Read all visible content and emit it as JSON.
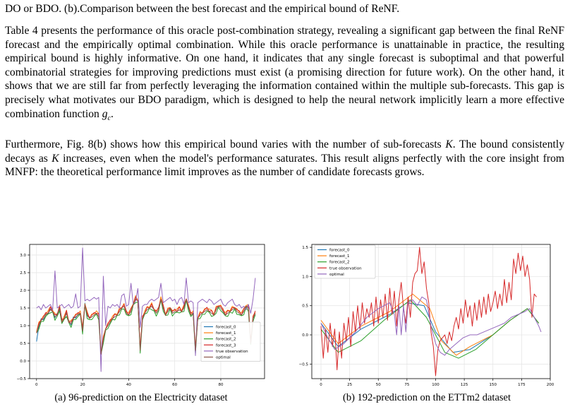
{
  "top_line": "DO or BDO. (b).Comparison between the best forecast and the empirical bound of ReNF.",
  "paragraphs": {
    "p1": "Table 4 presents the performance of this oracle post-combination strategy, revealing a significant gap between the final ReNF forecast and the empirically optimal combination. While this oracle performance is unattainable in practice, the resulting empirical bound is highly informative. On one hand, it indicates that any single forecast is suboptimal and that powerful combinatorial strategies for improving predictions must exist (a promising direction for future work). On the other hand, it shows that we are still far from perfectly leveraging the information contained within the multiple sub-forecasts. This gap is precisely what motivates our BDO paradigm, which is designed to help the neural network implicitly learn a more effective combination function",
    "p1_symbol": "g",
    "p1_subscript": "c",
    "p1_end": ".",
    "p2_a": "Furthermore, Fig. 8(b) shows how this empirical bound varies with the number of sub-forecasts",
    "p2_k1": "K",
    "p2_b": ". The bound consistently decays as",
    "p2_k2": "K",
    "p2_c": "increases, even when the model's performance saturates. This result aligns perfectly with the core insight from MNFP: the theoretical performance limit improves as the number of candidate forecasts grows."
  },
  "figures": {
    "a": {
      "caption": "(a) 96-prediction on the Electricity dataset",
      "chart_data": {
        "type": "line",
        "x_ticks": [
          "0",
          "20",
          "40",
          "60",
          "80"
        ],
        "y_ticks": [
          "−0.5",
          "0.0",
          "0.5",
          "1.0",
          "1.5",
          "2.0",
          "2.5",
          "3.0"
        ],
        "xlim": [
          -3,
          99
        ],
        "ylim": [
          -0.5,
          3.3
        ],
        "grid": true,
        "legend": "lower-right",
        "series": [
          {
            "name": "forecast_0",
            "color": "#1f77b4",
            "x_end": 23
          },
          {
            "name": "forecast_1",
            "color": "#ff7f0e"
          },
          {
            "name": "forecast_2",
            "color": "#2ca02c"
          },
          {
            "name": "forecast_3",
            "color": "#d62728"
          },
          {
            "name": "true observation",
            "color": "#9467bd"
          },
          {
            "name": "optimal",
            "color": "#8c564b"
          }
        ],
        "forecast_base": [
          0.8,
          1.0,
          1.15,
          1.2,
          1.3,
          1.35,
          1.45,
          1.4,
          1.25,
          1.3,
          1.5,
          1.1,
          1.2,
          1.35,
          1.1,
          1.05,
          1.2,
          1.25,
          1.3,
          1.35,
          0.85,
          1.6,
          1.3,
          1.2,
          1.25,
          1.3,
          1.35,
          1.25,
          0.2,
          0.6,
          0.9,
          1.0,
          1.1,
          1.2,
          1.25,
          1.3,
          1.4,
          1.5,
          1.55,
          1.35,
          1.3,
          1.4,
          1.6,
          1.75,
          1.7,
          0.3,
          1.2,
          1.35,
          1.45,
          1.5,
          1.55,
          1.45,
          1.35,
          1.45,
          1.75,
          1.5,
          1.3,
          1.4,
          1.5,
          1.35,
          1.4,
          1.4,
          1.45,
          1.4,
          1.5,
          1.75,
          1.5,
          1.3,
          1.35,
          0.3,
          1.2,
          1.3,
          1.35,
          1.4,
          1.45,
          1.4,
          1.35,
          1.3,
          1.45,
          1.55,
          1.5,
          1.4,
          1.3,
          1.35,
          1.4,
          1.45,
          1.5,
          1.4,
          1.35,
          1.3,
          1.4,
          1.55,
          1.5,
          0.5,
          1.2,
          1.35
        ],
        "true_observation": [
          1.5,
          1.55,
          1.45,
          1.6,
          1.5,
          1.55,
          1.6,
          1.45,
          2.55,
          1.5,
          1.55,
          1.6,
          1.5,
          1.55,
          1.6,
          1.5,
          1.55,
          1.9,
          1.5,
          1.55,
          3.2,
          1.7,
          1.75,
          1.7,
          1.75,
          1.8,
          1.75,
          1.8,
          -0.3,
          2.4,
          1.0,
          1.55,
          1.5,
          1.6,
          1.55,
          1.6,
          1.5,
          1.85,
          1.9,
          1.55,
          1.6,
          2.2,
          1.6,
          1.7,
          2.05,
          0.95,
          1.55,
          1.6,
          1.6,
          1.7,
          1.75,
          1.7,
          1.75,
          1.8,
          2.2,
          1.65,
          1.7,
          1.75,
          1.8,
          1.7,
          1.75,
          1.6,
          1.75,
          1.8,
          1.6,
          2.35,
          1.65,
          1.7,
          1.65,
          0.15,
          1.65,
          1.7,
          1.75,
          1.7,
          1.65,
          1.75,
          1.7,
          1.6,
          1.65,
          1.7,
          1.75,
          1.6,
          1.55,
          1.65,
          1.7,
          1.75,
          1.6,
          1.55,
          1.6,
          1.5,
          1.55,
          1.45,
          1.6,
          1.35,
          1.75,
          2.35
        ]
      }
    },
    "b": {
      "caption": "(b) 192-prediction on the ETTm2 dataset",
      "chart_data": {
        "type": "line",
        "x_ticks": [
          "0",
          "25",
          "50",
          "75",
          "100",
          "125",
          "150",
          "175",
          "200"
        ],
        "y_ticks": [
          "−0.5",
          "0.0",
          "0.5",
          "1.0",
          "1.5"
        ],
        "xlim": [
          -8,
          200
        ],
        "ylim": [
          -0.75,
          1.55
        ],
        "grid": true,
        "legend": "top-left",
        "series": [
          {
            "name": "forecast_0",
            "color": "#1f77b4"
          },
          {
            "name": "forecast_1",
            "color": "#ff7f0e"
          },
          {
            "name": "forecast_2",
            "color": "#2ca02c"
          },
          {
            "name": "true observation",
            "color": "#d62728"
          },
          {
            "name": "optimal",
            "color": "#9467bd"
          }
        ],
        "f0": [
          [
            0,
            0.2
          ],
          [
            15,
            -0.2
          ],
          [
            35,
            0.1
          ],
          [
            60,
            0.35
          ],
          [
            75,
            0.55
          ],
          [
            90,
            0.5
          ],
          [
            100,
            0.05
          ],
          [
            115,
            -0.3
          ],
          [
            130,
            -0.25
          ],
          [
            150,
            0.0
          ],
          [
            165,
            0.25
          ],
          [
            180,
            0.45
          ],
          [
            190,
            0.2
          ]
        ],
        "f1": [
          [
            0,
            0.25
          ],
          [
            15,
            -0.15
          ],
          [
            35,
            0.15
          ],
          [
            60,
            0.4
          ],
          [
            80,
            0.7
          ],
          [
            95,
            0.45
          ],
          [
            105,
            -0.1
          ],
          [
            118,
            -0.35
          ],
          [
            130,
            -0.2
          ],
          [
            150,
            0.0
          ],
          [
            165,
            0.25
          ],
          [
            180,
            0.45
          ],
          [
            190,
            0.2
          ]
        ],
        "f2": [
          [
            0,
            0.1
          ],
          [
            15,
            -0.3
          ],
          [
            35,
            -0.1
          ],
          [
            55,
            0.25
          ],
          [
            78,
            0.6
          ],
          [
            92,
            0.3
          ],
          [
            108,
            -0.3
          ],
          [
            120,
            -0.4
          ],
          [
            135,
            -0.25
          ],
          [
            150,
            0.0
          ],
          [
            165,
            0.25
          ],
          [
            180,
            0.45
          ],
          [
            190,
            0.2
          ]
        ],
        "true_observation": [
          [
            0,
            0.15
          ],
          [
            2,
            -0.4
          ],
          [
            4,
            0.1
          ],
          [
            6,
            -0.3
          ],
          [
            8,
            0.2
          ],
          [
            10,
            -0.2
          ],
          [
            12,
            0.1
          ],
          [
            14,
            -0.6
          ],
          [
            16,
            0.05
          ],
          [
            18,
            -0.4
          ],
          [
            20,
            0.2
          ],
          [
            22,
            -0.1
          ],
          [
            24,
            0.3
          ],
          [
            26,
            -0.2
          ],
          [
            28,
            0.4
          ],
          [
            30,
            0.05
          ],
          [
            32,
            0.5
          ],
          [
            34,
            0.1
          ],
          [
            36,
            0.55
          ],
          [
            38,
            0.2
          ],
          [
            40,
            0.45
          ],
          [
            42,
            0.3
          ],
          [
            44,
            0.55
          ],
          [
            46,
            0.15
          ],
          [
            48,
            0.65
          ],
          [
            50,
            0.2
          ],
          [
            52,
            0.6
          ],
          [
            54,
            0.3
          ],
          [
            56,
            0.7
          ],
          [
            58,
            0.25
          ],
          [
            60,
            0.8
          ],
          [
            62,
            0.35
          ],
          [
            64,
            0.75
          ],
          [
            66,
            0.15
          ],
          [
            68,
            0.6
          ],
          [
            70,
            0.9
          ],
          [
            72,
            0.45
          ],
          [
            74,
            0.2
          ],
          [
            76,
            0.65
          ],
          [
            78,
            0.3
          ],
          [
            80,
            0.9
          ],
          [
            82,
            1.05
          ],
          [
            84,
            1.1
          ],
          [
            86,
            1.5
          ],
          [
            88,
            1.05
          ],
          [
            90,
            1.25
          ],
          [
            92,
            0.8
          ],
          [
            94,
            0.55
          ],
          [
            96,
            0.05
          ],
          [
            98,
            -0.2
          ],
          [
            100,
            -0.7
          ],
          [
            102,
            -0.25
          ],
          [
            104,
            -0.1
          ],
          [
            106,
            -0.05
          ],
          [
            108,
            0.0
          ],
          [
            110,
            -0.15
          ],
          [
            112,
            0.05
          ],
          [
            114,
            -0.1
          ],
          [
            116,
            0.15
          ],
          [
            118,
            0.3
          ],
          [
            120,
            0.1
          ],
          [
            122,
            0.45
          ],
          [
            124,
            0.2
          ],
          [
            126,
            0.6
          ],
          [
            128,
            0.3
          ],
          [
            130,
            0.5
          ],
          [
            132,
            0.15
          ],
          [
            134,
            0.55
          ],
          [
            136,
            0.25
          ],
          [
            138,
            0.6
          ],
          [
            140,
            0.3
          ],
          [
            142,
            0.65
          ],
          [
            144,
            0.35
          ],
          [
            146,
            0.7
          ],
          [
            148,
            0.4
          ],
          [
            150,
            0.55
          ],
          [
            152,
            0.75
          ],
          [
            154,
            0.45
          ],
          [
            156,
            0.7
          ],
          [
            158,
            0.5
          ],
          [
            160,
            0.95
          ],
          [
            162,
            0.55
          ],
          [
            164,
            0.9
          ],
          [
            166,
            0.6
          ],
          [
            168,
            1.3
          ],
          [
            170,
            1.05
          ],
          [
            172,
            1.4
          ],
          [
            174,
            1.1
          ],
          [
            176,
            1.35
          ],
          [
            178,
            1.0
          ],
          [
            180,
            1.2
          ],
          [
            182,
            0.95
          ],
          [
            184,
            0.3
          ],
          [
            186,
            0.7
          ],
          [
            188,
            0.65
          ]
        ],
        "optimal": [
          [
            0,
            0.2
          ],
          [
            6,
            -0.05
          ],
          [
            12,
            -0.25
          ],
          [
            20,
            -0.15
          ],
          [
            30,
            0.05
          ],
          [
            40,
            0.3
          ],
          [
            50,
            0.45
          ],
          [
            55,
            0.5
          ],
          [
            60,
            0.55
          ],
          [
            64,
            0.35
          ],
          [
            66,
            0.0
          ],
          [
            68,
            0.5
          ],
          [
            70,
            0.0
          ],
          [
            72,
            0.5
          ],
          [
            74,
            0.05
          ],
          [
            76,
            0.55
          ],
          [
            80,
            0.6
          ],
          [
            84,
            0.5
          ],
          [
            88,
            0.65
          ],
          [
            92,
            0.6
          ],
          [
            96,
            0.15
          ],
          [
            100,
            -0.15
          ],
          [
            104,
            -0.3
          ],
          [
            108,
            -0.35
          ],
          [
            112,
            -0.25
          ],
          [
            118,
            -0.15
          ],
          [
            124,
            -0.05
          ],
          [
            130,
            0.0
          ],
          [
            136,
            0.0
          ],
          [
            142,
            0.05
          ],
          [
            148,
            0.1
          ],
          [
            154,
            0.15
          ],
          [
            160,
            0.2
          ],
          [
            166,
            0.3
          ],
          [
            172,
            0.35
          ],
          [
            178,
            0.4
          ],
          [
            182,
            0.45
          ],
          [
            186,
            0.3
          ],
          [
            190,
            0.15
          ],
          [
            192,
            0.05
          ]
        ]
      }
    }
  }
}
